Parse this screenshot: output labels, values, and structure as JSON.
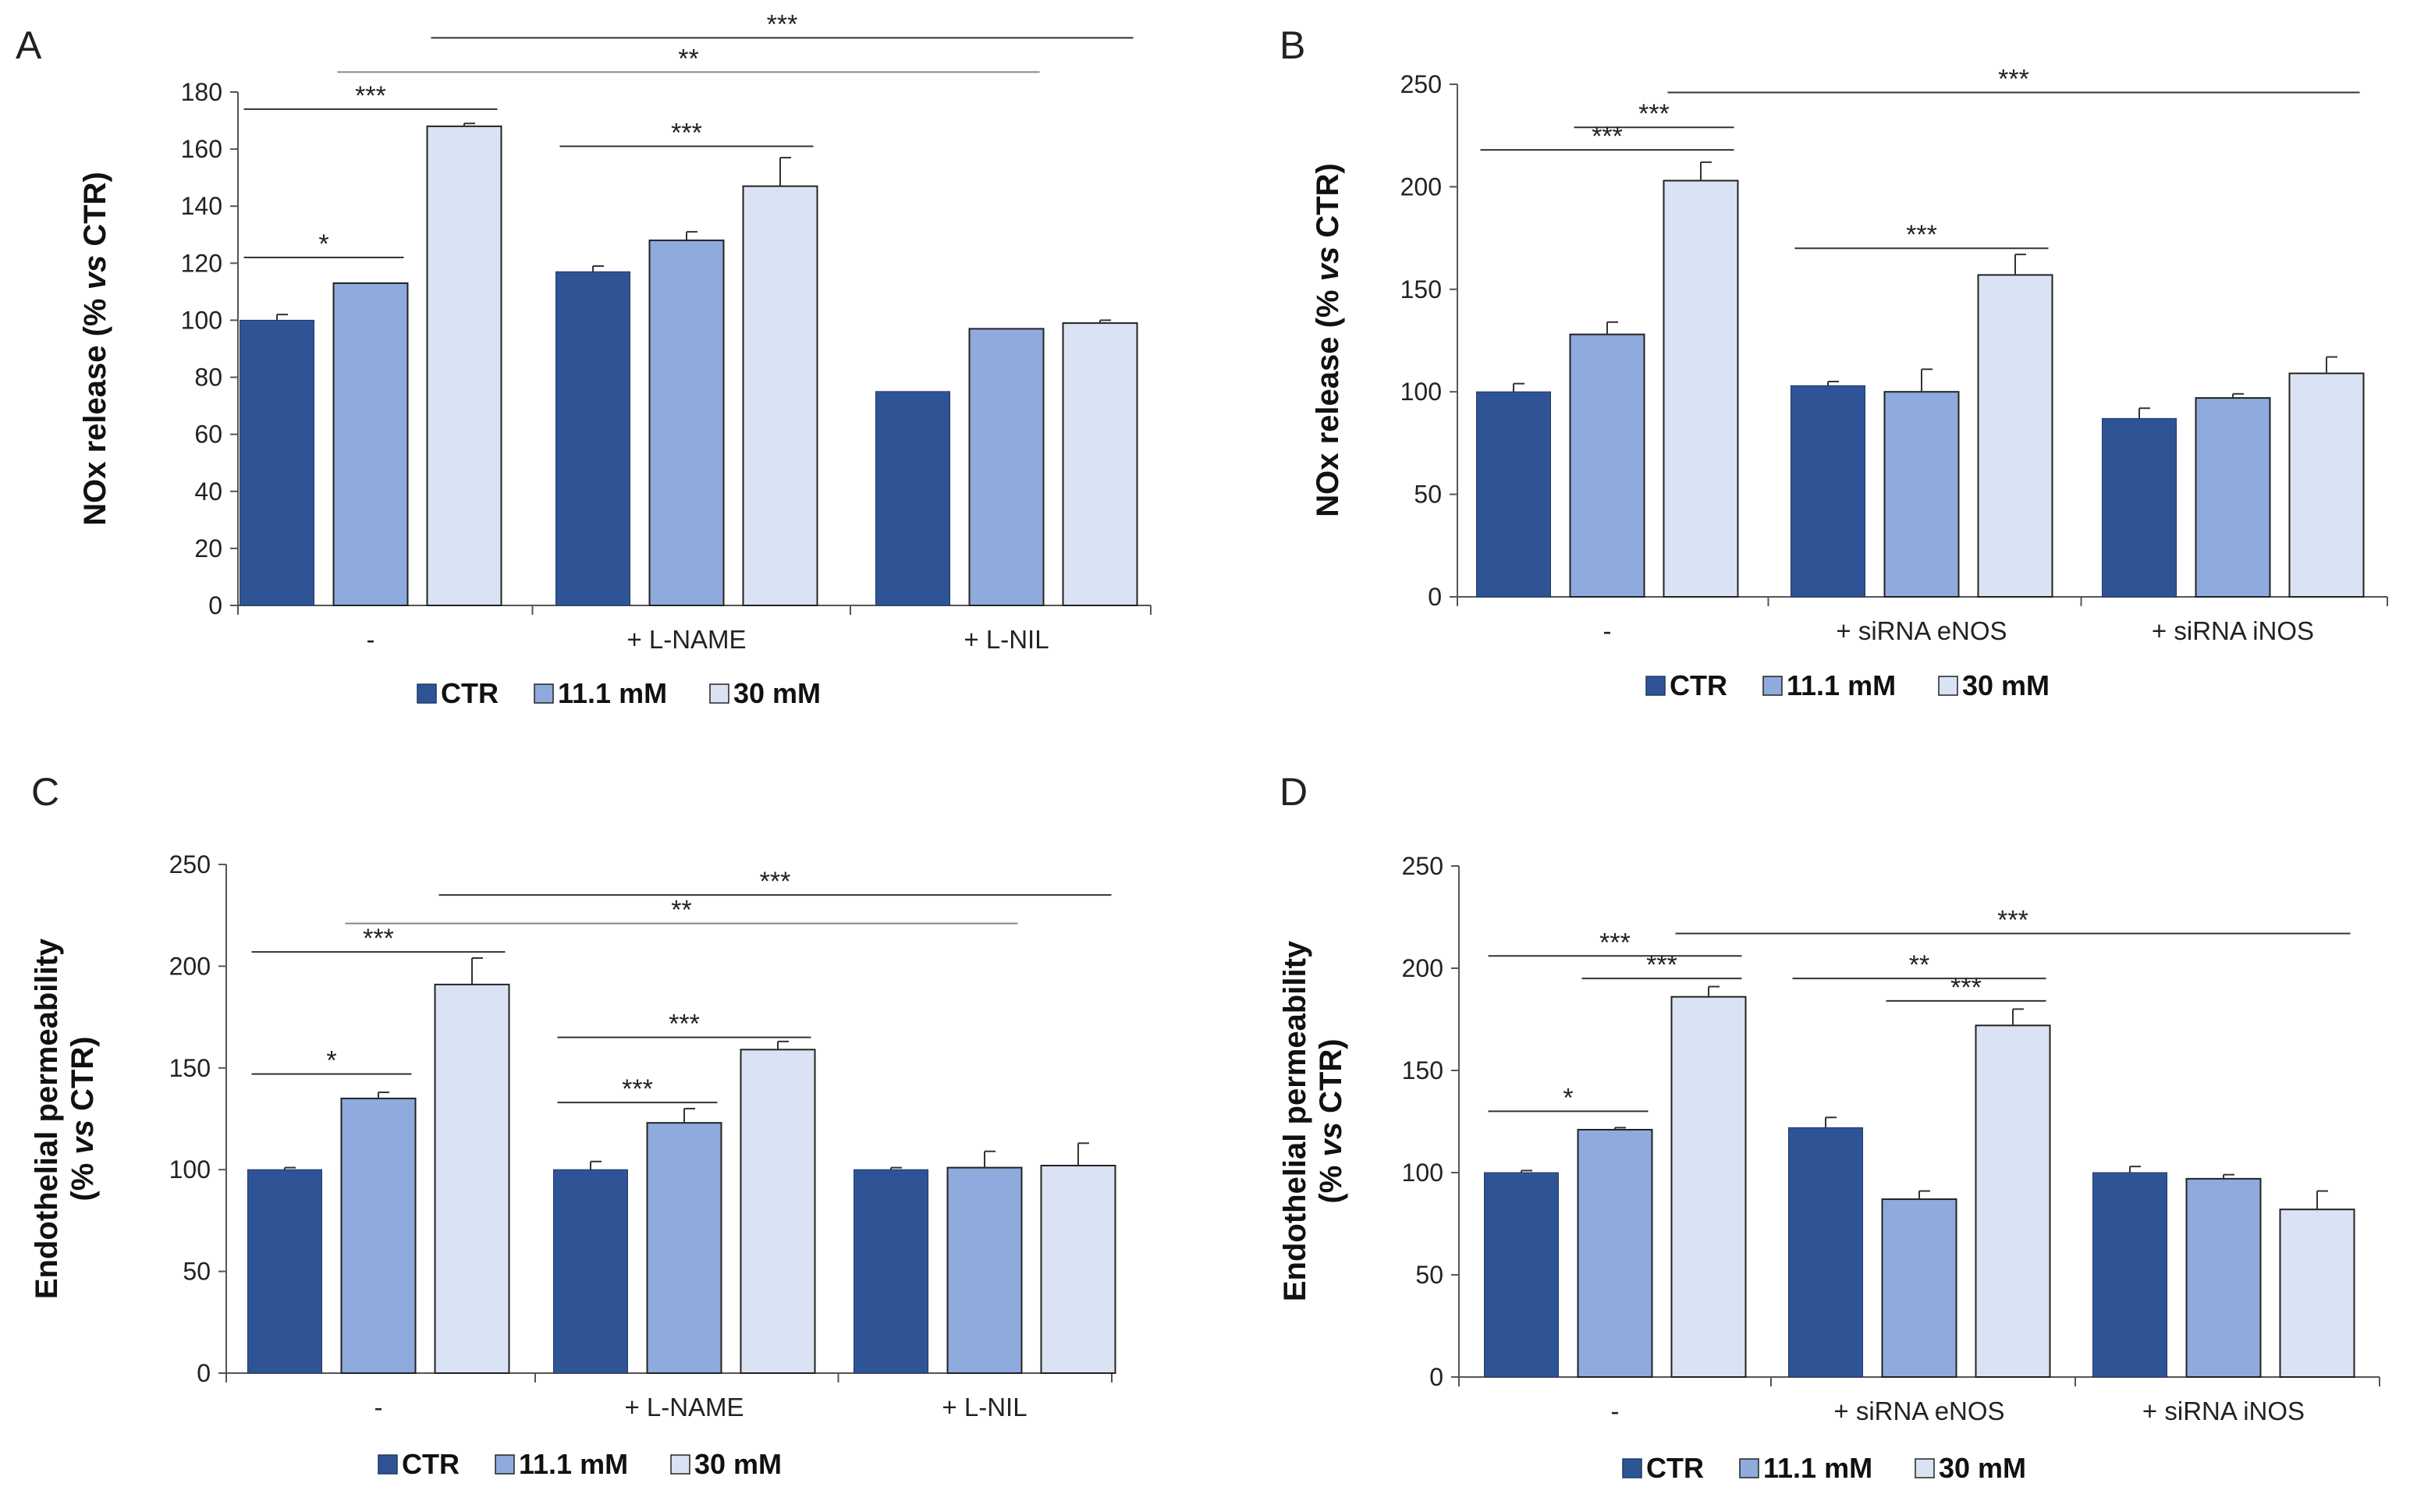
{
  "colors": {
    "CTR": "#2f5496",
    "11.1 mM": "#8faadc",
    "30 mM": "#dae3f3",
    "edge": "#222222",
    "ctr_edge": "#1f3864"
  },
  "legend": [
    "CTR",
    "11.1 mM",
    "30 mM"
  ],
  "chart_data": [
    {
      "panel": "A",
      "type": "bar",
      "ylabel_parts": [
        "NOx release (% ",
        "vs",
        " CTR)"
      ],
      "ylim": [
        0,
        180
      ],
      "ytick_step": 20,
      "categories": [
        "-",
        "+ L-NAME",
        "+ L-NIL"
      ],
      "series": [
        {
          "name": "CTR",
          "values": [
            100,
            117,
            75
          ],
          "errors": [
            2,
            2,
            0
          ]
        },
        {
          "name": "11.1 mM",
          "values": [
            113,
            128,
            97
          ],
          "errors": [
            0,
            3,
            0
          ]
        },
        {
          "name": "30 mM",
          "values": [
            168,
            147,
            99
          ],
          "errors": [
            1,
            10,
            1
          ]
        }
      ],
      "sig": [
        {
          "from": [
            0,
            0
          ],
          "to": [
            0,
            1
          ],
          "label": "*",
          "y": 122
        },
        {
          "from": [
            0,
            0
          ],
          "to": [
            0,
            2
          ],
          "label": "***",
          "y": 174
        },
        {
          "from": [
            1,
            0
          ],
          "to": [
            1,
            2
          ],
          "label": "***",
          "y": 161
        },
        {
          "from": [
            0,
            1
          ],
          "to": [
            2,
            1
          ],
          "label": "**",
          "y": 187
        },
        {
          "from": [
            0,
            2
          ],
          "to": [
            2,
            2
          ],
          "label": "***",
          "y": 199
        }
      ]
    },
    {
      "panel": "B",
      "type": "bar",
      "ylabel_parts": [
        "NOx release (% ",
        "vs",
        " CTR)"
      ],
      "ylim": [
        0,
        250
      ],
      "ytick_step": 50,
      "categories": [
        "-",
        "+ siRNA eNOS",
        "+ siRNA iNOS"
      ],
      "series": [
        {
          "name": "CTR",
          "values": [
            100,
            103,
            87
          ],
          "errors": [
            4,
            2,
            5
          ]
        },
        {
          "name": "11.1 mM",
          "values": [
            128,
            100,
            97
          ],
          "errors": [
            6,
            11,
            2
          ]
        },
        {
          "name": "30 mM",
          "values": [
            203,
            157,
            109
          ],
          "errors": [
            9,
            10,
            8
          ]
        }
      ],
      "sig": [
        {
          "from": [
            0,
            1
          ],
          "to": [
            0,
            2
          ],
          "label": "***",
          "y": 229
        },
        {
          "from": [
            0,
            0
          ],
          "to": [
            0,
            2
          ],
          "label": "***",
          "y": 218
        },
        {
          "from": [
            1,
            0
          ],
          "to": [
            1,
            2
          ],
          "label": "***",
          "y": 170
        },
        {
          "from": [
            0,
            2
          ],
          "to": [
            2,
            2
          ],
          "label": "***",
          "y": 246
        }
      ]
    },
    {
      "panel": "C",
      "type": "bar",
      "ylabel_parts": [
        "Endothelial permeability",
        "(% ",
        "vs",
        " CTR)"
      ],
      "ylim": [
        0,
        250
      ],
      "ytick_step": 50,
      "categories": [
        "-",
        "+ L-NAME",
        "+ L-NIL"
      ],
      "series": [
        {
          "name": "CTR",
          "values": [
            100,
            100,
            100
          ],
          "errors": [
            1,
            4,
            1
          ]
        },
        {
          "name": "11.1 mM",
          "values": [
            135,
            123,
            101
          ],
          "errors": [
            3,
            7,
            8
          ]
        },
        {
          "name": "30 mM",
          "values": [
            191,
            159,
            102
          ],
          "errors": [
            13,
            4,
            11
          ]
        }
      ],
      "sig": [
        {
          "from": [
            0,
            0
          ],
          "to": [
            0,
            1
          ],
          "label": "*",
          "y": 147
        },
        {
          "from": [
            0,
            0
          ],
          "to": [
            0,
            2
          ],
          "label": "***",
          "y": 207
        },
        {
          "from": [
            1,
            0
          ],
          "to": [
            1,
            1
          ],
          "label": "***",
          "y": 133
        },
        {
          "from": [
            1,
            0
          ],
          "to": [
            1,
            2
          ],
          "label": "***",
          "y": 165
        },
        {
          "from": [
            0,
            1
          ],
          "to": [
            2,
            1
          ],
          "label": "**",
          "y": 221
        },
        {
          "from": [
            0,
            2
          ],
          "to": [
            2,
            2
          ],
          "label": "***",
          "y": 235
        }
      ]
    },
    {
      "panel": "D",
      "type": "bar",
      "ylabel_parts": [
        "Endothelial permeability",
        "(% ",
        "vs",
        " CTR)"
      ],
      "ylim": [
        0,
        250
      ],
      "ytick_step": 50,
      "categories": [
        "-",
        "+ siRNA eNOS",
        "+ siRNA iNOS"
      ],
      "series": [
        {
          "name": "CTR",
          "values": [
            100,
            122,
            100
          ],
          "errors": [
            1,
            5,
            3
          ]
        },
        {
          "name": "11.1 mM",
          "values": [
            121,
            87,
            97
          ],
          "errors": [
            1,
            4,
            2
          ]
        },
        {
          "name": "30 mM",
          "values": [
            186,
            172,
            82
          ],
          "errors": [
            5,
            8,
            9
          ]
        }
      ],
      "sig": [
        {
          "from": [
            0,
            0
          ],
          "to": [
            0,
            1
          ],
          "label": "*",
          "y": 130
        },
        {
          "from": [
            0,
            0
          ],
          "to": [
            0,
            2
          ],
          "label": "***",
          "y": 206
        },
        {
          "from": [
            0,
            1
          ],
          "to": [
            0,
            2
          ],
          "label": "***",
          "y": 195
        },
        {
          "from": [
            1,
            0
          ],
          "to": [
            1,
            2
          ],
          "label": "**",
          "y": 195
        },
        {
          "from": [
            1,
            1
          ],
          "to": [
            1,
            2
          ],
          "label": "***",
          "y": 184
        },
        {
          "from": [
            0,
            2
          ],
          "to": [
            2,
            2
          ],
          "label": "***",
          "y": 217
        }
      ]
    }
  ]
}
